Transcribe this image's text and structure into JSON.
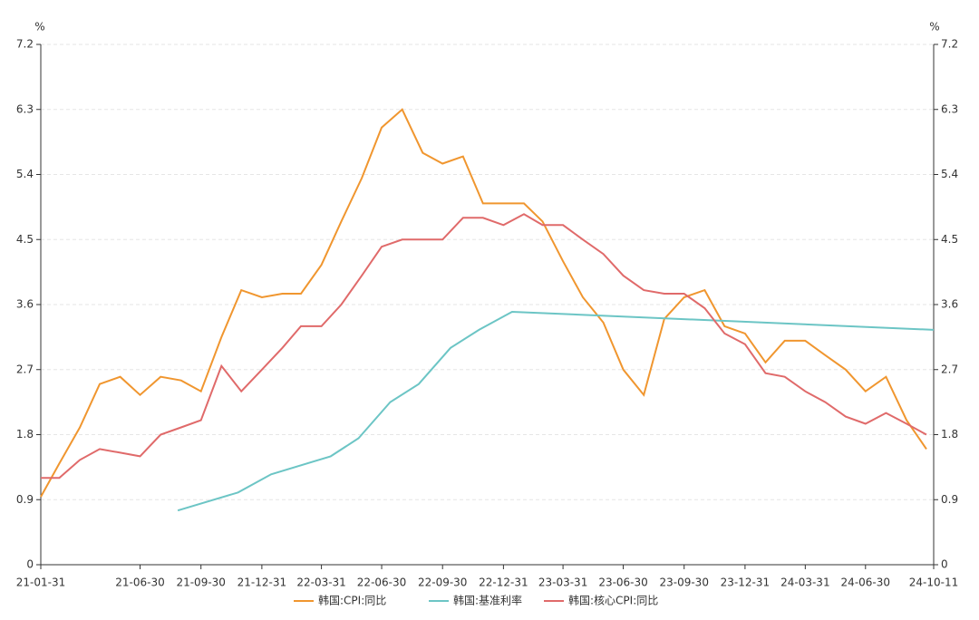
{
  "chart_data": {
    "type": "line",
    "y_unit": "%",
    "y2_unit": "%",
    "xlim": [
      "21-01-31",
      "24-10-11"
    ],
    "xticks": [
      "21-01-31",
      "21-06-30",
      "21-09-30",
      "21-12-31",
      "22-03-31",
      "22-06-30",
      "22-09-30",
      "22-12-31",
      "23-03-31",
      "23-06-30",
      "23-09-30",
      "23-12-31",
      "24-03-31",
      "24-06-30",
      "24-10-11"
    ],
    "ylim": [
      0,
      7.2
    ],
    "yticks": [
      0,
      0.9,
      1.8,
      2.7,
      3.6,
      4.5,
      5.4,
      6.3,
      7.2
    ],
    "y2lim": [
      0,
      7.2
    ],
    "y2ticks": [
      0,
      0.9,
      1.8,
      2.7,
      3.6,
      4.5,
      5.4,
      6.3,
      7.2
    ],
    "grid": true,
    "legend": "bottom",
    "series": [
      {
        "name": "韩国:CPI:同比",
        "color": "#f0962f",
        "x": [
          "21-01-31",
          "21-02-28",
          "21-03-31",
          "21-04-30",
          "21-05-31",
          "21-06-30",
          "21-07-31",
          "21-08-31",
          "21-09-30",
          "21-10-31",
          "21-11-30",
          "21-12-31",
          "22-01-31",
          "22-02-28",
          "22-03-31",
          "22-04-30",
          "22-05-31",
          "22-06-30",
          "22-07-31",
          "22-08-31",
          "22-09-30",
          "22-10-31",
          "22-11-30",
          "22-12-31",
          "23-01-31",
          "23-02-28",
          "23-03-31",
          "23-04-30",
          "23-05-31",
          "23-06-30",
          "23-07-31",
          "23-08-31",
          "23-09-30",
          "23-10-31",
          "23-11-30",
          "23-12-31",
          "24-01-31",
          "24-02-29",
          "24-03-31",
          "24-04-30",
          "24-05-31",
          "24-06-30",
          "24-07-31",
          "24-08-31",
          "24-09-30"
        ],
        "values": [
          0.94,
          1.4,
          1.9,
          2.5,
          2.6,
          2.35,
          2.6,
          2.55,
          2.4,
          3.15,
          3.8,
          3.7,
          3.75,
          3.75,
          4.15,
          4.75,
          5.35,
          6.05,
          6.3,
          5.7,
          5.55,
          5.65,
          5.0,
          5.0,
          5.0,
          4.75,
          4.2,
          3.7,
          3.35,
          2.7,
          2.35,
          3.4,
          3.7,
          3.8,
          3.3,
          3.2,
          2.8,
          3.1,
          3.1,
          2.9,
          2.7,
          2.4,
          2.6,
          2.0,
          1.6
        ]
      },
      {
        "name": "韩国:基准利率",
        "color": "#6cc5c5",
        "x": [
          "21-08-26",
          "21-11-25",
          "22-01-14",
          "22-04-14",
          "22-05-26",
          "22-07-13",
          "22-08-25",
          "22-10-12",
          "22-11-24",
          "23-01-13",
          "24-10-11"
        ],
        "values": [
          0.75,
          1.0,
          1.25,
          1.5,
          1.75,
          2.25,
          2.5,
          3.0,
          3.25,
          3.5,
          3.25
        ]
      },
      {
        "name": "韩国:核心CPI:同比",
        "color": "#e06a6a",
        "x": [
          "21-01-31",
          "21-02-28",
          "21-03-31",
          "21-04-30",
          "21-05-31",
          "21-06-30",
          "21-07-31",
          "21-08-31",
          "21-09-30",
          "21-10-31",
          "21-11-30",
          "21-12-31",
          "22-01-31",
          "22-02-28",
          "22-03-31",
          "22-04-30",
          "22-05-31",
          "22-06-30",
          "22-07-31",
          "22-08-31",
          "22-09-30",
          "22-10-31",
          "22-11-30",
          "22-12-31",
          "23-01-31",
          "23-02-28",
          "23-03-31",
          "23-04-30",
          "23-05-31",
          "23-06-30",
          "23-07-31",
          "23-08-31",
          "23-09-30",
          "23-10-31",
          "23-11-30",
          "23-12-31",
          "24-01-31",
          "24-02-29",
          "24-03-31",
          "24-04-30",
          "24-05-31",
          "24-06-30",
          "24-07-31",
          "24-08-31",
          "24-09-30"
        ],
        "values": [
          1.2,
          1.2,
          1.45,
          1.6,
          1.55,
          1.5,
          1.8,
          1.9,
          2.0,
          2.75,
          2.4,
          2.7,
          3.0,
          3.3,
          3.3,
          3.6,
          4.0,
          4.4,
          4.5,
          4.5,
          4.5,
          4.8,
          4.8,
          4.7,
          4.85,
          4.7,
          4.7,
          4.5,
          4.3,
          4.0,
          3.8,
          3.75,
          3.75,
          3.55,
          3.2,
          3.05,
          2.65,
          2.6,
          2.4,
          2.25,
          2.05,
          1.95,
          2.1,
          1.95,
          1.8
        ]
      }
    ]
  }
}
